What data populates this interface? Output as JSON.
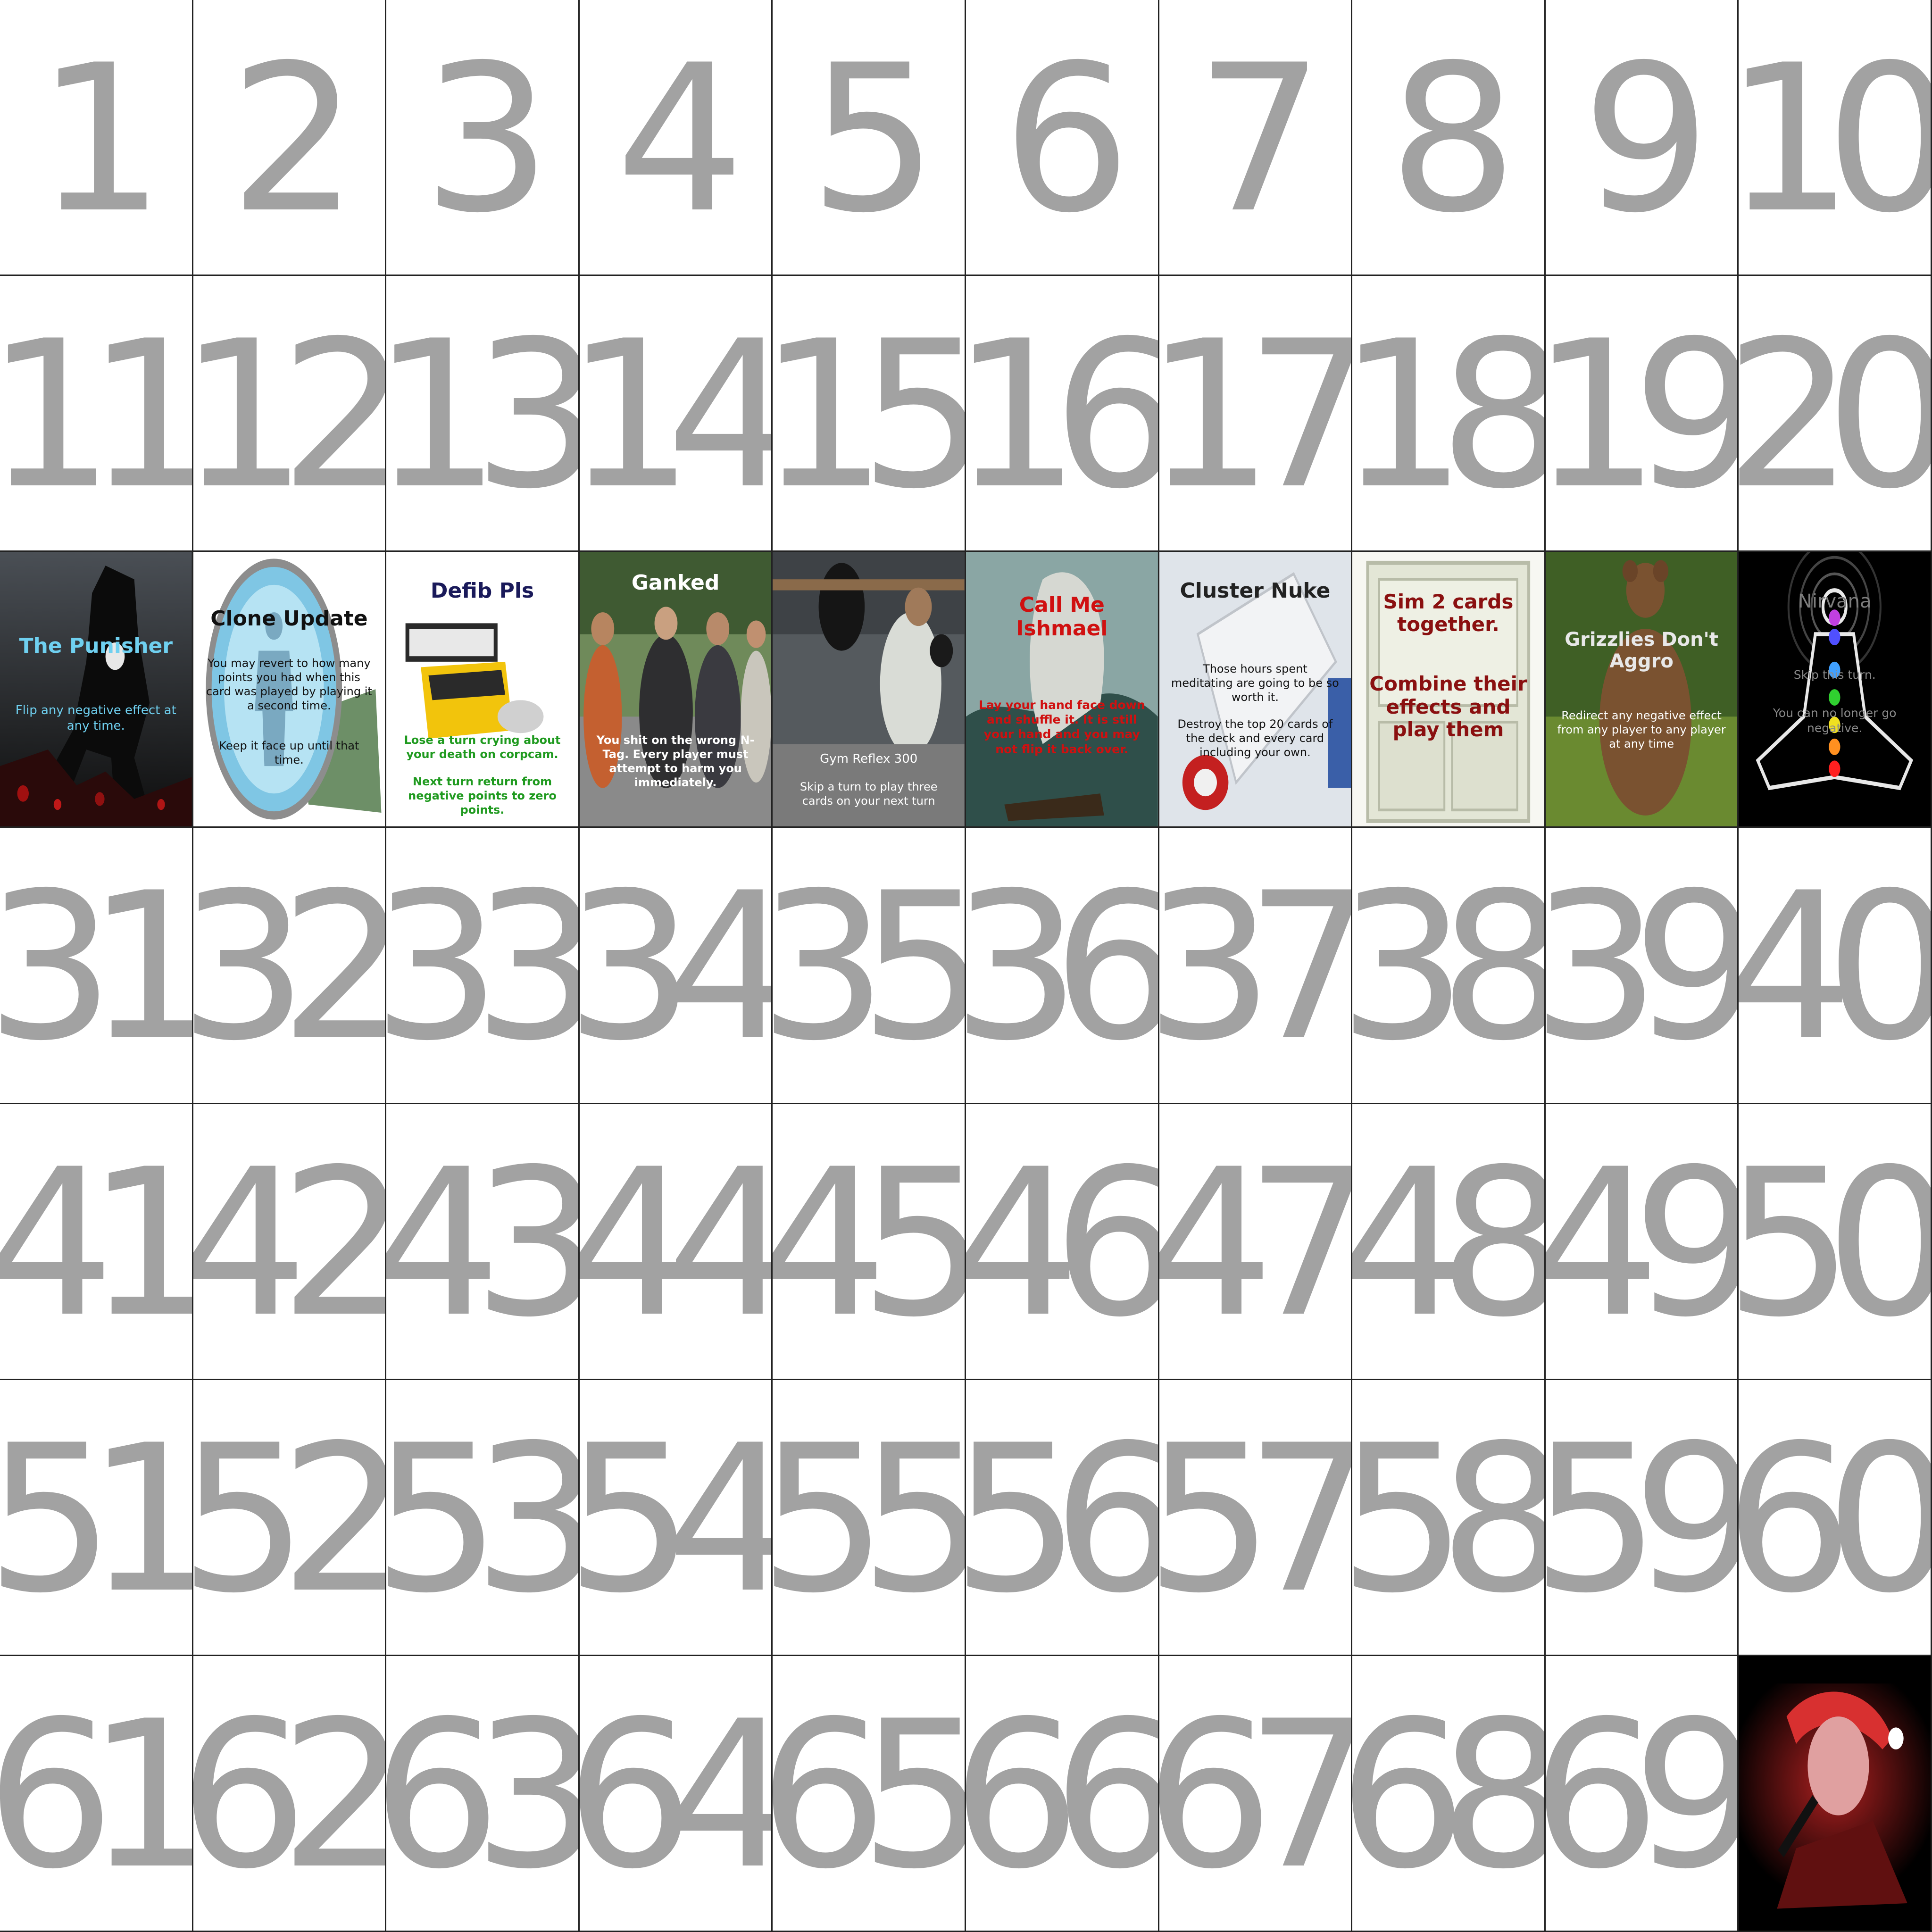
{
  "sheet": {
    "number_color": "#a2a2a2",
    "numbers_row1": [
      "1",
      "2",
      "3",
      "4",
      "5",
      "6",
      "7",
      "8",
      "9",
      "10"
    ],
    "numbers_row2": [
      "11",
      "12",
      "13",
      "14",
      "15",
      "16",
      "17",
      "18",
      "19",
      "20"
    ],
    "numbers_row4": [
      "31",
      "32",
      "33",
      "34",
      "35",
      "36",
      "37",
      "38",
      "39",
      "40"
    ],
    "numbers_row5": [
      "41",
      "42",
      "43",
      "44",
      "45",
      "46",
      "47",
      "48",
      "49",
      "50"
    ],
    "numbers_row6": [
      "51",
      "52",
      "53",
      "54",
      "55",
      "56",
      "57",
      "58",
      "59",
      "60"
    ],
    "numbers_row7": [
      "61",
      "62",
      "63",
      "64",
      "65",
      "66",
      "67",
      "68",
      "69"
    ]
  },
  "cards": {
    "punisher": {
      "title": "The Punisher",
      "text": "Flip any negative effect at any time.",
      "title_color": "#6fd0f0",
      "text_color": "#6fd0f0"
    },
    "clone_update": {
      "title": "Clone Update",
      "text": "You may revert to how many points you had when this card was played by playing it a second time.",
      "text2": "Keep it face up until that time."
    },
    "defib": {
      "title": "Defib Pls",
      "text": "Lose a turn crying about your death on corpcam.",
      "text2": "Next turn return from negative points to zero points.",
      "title_color": "#1a1a5a",
      "text_color": "#1f9a1f"
    },
    "ganked": {
      "title": "Ganked",
      "text": "You shit on the wrong N-Tag. Every player must attempt to harm you immediately."
    },
    "gym_reflex": {
      "title": "Gym Reflex 300",
      "text": "Skip a turn to play three cards on your next turn"
    },
    "ishmael": {
      "title": "Call Me Ishmael",
      "text": "Lay your hand face down and shuffle it. It is still your hand and you may not flip it back over.",
      "color": "#d01010"
    },
    "cluster_nuke": {
      "title": "Cluster Nuke",
      "text": "Those hours spent meditating are going to be so worth it.",
      "text2": "Destroy the top 20 cards of the deck and every card including your own."
    },
    "sim_cards": {
      "title": "Sim 2 cards together.",
      "text": "Combine their effects and play them",
      "color": "#8a1010"
    },
    "grizzlies": {
      "title": "Grizzlies Don't Aggro",
      "text": "Redirect any negative effect from any player to any player at any time"
    },
    "nirvana": {
      "title": "Nirvana",
      "text": "Skip this turn.",
      "text2": "You can no longer go negative.",
      "chakra_colors": [
        "#c040e0",
        "#5050ff",
        "#40a0ff",
        "#30d030",
        "#f0e020",
        "#ff9020",
        "#ff2020"
      ]
    }
  }
}
